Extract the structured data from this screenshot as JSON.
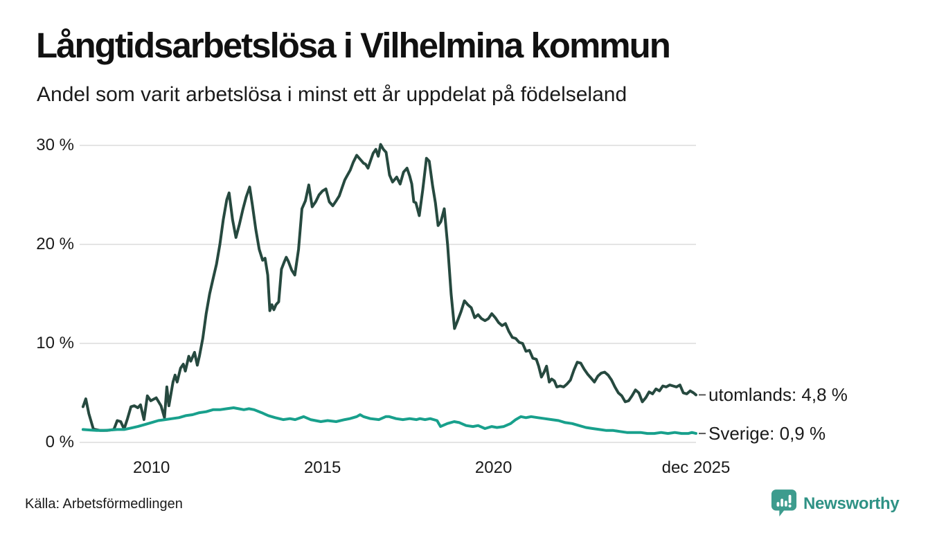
{
  "footer": {
    "brand_name": "Newsworthy",
    "brand_text_color": "#2f9285",
    "brand_icon_color": "#3d9c8e"
  },
  "chart_data": {
    "type": "line",
    "title": "Långtidsarbetslösa i Vilhelmina kommun",
    "subtitle": "Andel som varit arbetslösa i minst ett år uppdelat på födelseland",
    "source": "Källa: Arbetsförmedlingen",
    "unit": "%",
    "grid_color": "#e4e4e4",
    "connector_color": "#555555",
    "x_axis": {
      "range": [
        2007.9,
        2025.92
      ],
      "ticks": [
        {
          "x": 2010,
          "label": "2010"
        },
        {
          "x": 2015,
          "label": "2015"
        },
        {
          "x": 2020,
          "label": "2020"
        },
        {
          "x": 2025.92,
          "label": "dec 2025"
        }
      ]
    },
    "y_axis": {
      "range": [
        0,
        30
      ],
      "grid": true,
      "ticks": [
        {
          "v": 0,
          "label": "0 %"
        },
        {
          "v": 10,
          "label": "10 %"
        },
        {
          "v": 20,
          "label": "20 %"
        },
        {
          "v": 30,
          "label": "30 %"
        }
      ]
    },
    "series": [
      {
        "name": "utomlands",
        "color": "#26493f",
        "end_label": "utomlands: 4,8 %",
        "last_value": "4,8 %",
        "points": [
          [
            2008.0,
            3.6
          ],
          [
            2008.08,
            4.4
          ],
          [
            2008.17,
            2.9
          ],
          [
            2008.3,
            1.35
          ],
          [
            2008.5,
            1.2
          ],
          [
            2008.7,
            1.2
          ],
          [
            2008.9,
            1.3
          ],
          [
            2009.0,
            2.2
          ],
          [
            2009.1,
            2.1
          ],
          [
            2009.2,
            1.35
          ],
          [
            2009.3,
            2.4
          ],
          [
            2009.4,
            3.6
          ],
          [
            2009.5,
            3.7
          ],
          [
            2009.6,
            3.5
          ],
          [
            2009.68,
            3.8
          ],
          [
            2009.78,
            2.3
          ],
          [
            2009.88,
            4.7
          ],
          [
            2009.98,
            4.2
          ],
          [
            2010.14,
            4.5
          ],
          [
            2010.28,
            3.7
          ],
          [
            2010.38,
            2.5
          ],
          [
            2010.45,
            5.6
          ],
          [
            2010.51,
            3.7
          ],
          [
            2010.63,
            6.1
          ],
          [
            2010.69,
            6.8
          ],
          [
            2010.75,
            6.1
          ],
          [
            2010.85,
            7.5
          ],
          [
            2010.93,
            7.9
          ],
          [
            2010.99,
            7.2
          ],
          [
            2011.09,
            8.7
          ],
          [
            2011.15,
            8.2
          ],
          [
            2011.26,
            9.1
          ],
          [
            2011.34,
            7.8
          ],
          [
            2011.4,
            8.7
          ],
          [
            2011.5,
            10.5
          ],
          [
            2011.6,
            13.0
          ],
          [
            2011.7,
            15.0
          ],
          [
            2011.8,
            16.5
          ],
          [
            2011.9,
            18.0
          ],
          [
            2012.0,
            20.0
          ],
          [
            2012.1,
            22.5
          ],
          [
            2012.2,
            24.5
          ],
          [
            2012.27,
            25.2
          ],
          [
            2012.37,
            22.5
          ],
          [
            2012.47,
            20.7
          ],
          [
            2012.57,
            22.0
          ],
          [
            2012.67,
            23.5
          ],
          [
            2012.77,
            24.8
          ],
          [
            2012.87,
            25.8
          ],
          [
            2012.95,
            24.0
          ],
          [
            2013.05,
            21.5
          ],
          [
            2013.15,
            19.5
          ],
          [
            2013.25,
            18.4
          ],
          [
            2013.32,
            18.6
          ],
          [
            2013.4,
            16.9
          ],
          [
            2013.46,
            13.3
          ],
          [
            2013.52,
            13.9
          ],
          [
            2013.58,
            13.4
          ],
          [
            2013.64,
            13.9
          ],
          [
            2013.72,
            14.2
          ],
          [
            2013.8,
            17.5
          ],
          [
            2013.88,
            18.2
          ],
          [
            2013.94,
            18.7
          ],
          [
            2014.0,
            18.3
          ],
          [
            2014.1,
            17.4
          ],
          [
            2014.19,
            16.9
          ],
          [
            2014.3,
            19.5
          ],
          [
            2014.4,
            23.6
          ],
          [
            2014.5,
            24.4
          ],
          [
            2014.6,
            26.0
          ],
          [
            2014.7,
            23.8
          ],
          [
            2014.8,
            24.3
          ],
          [
            2014.9,
            25.0
          ],
          [
            2015.0,
            25.4
          ],
          [
            2015.1,
            25.6
          ],
          [
            2015.2,
            24.3
          ],
          [
            2015.3,
            23.9
          ],
          [
            2015.4,
            24.4
          ],
          [
            2015.49,
            24.9
          ],
          [
            2015.58,
            25.8
          ],
          [
            2015.65,
            26.5
          ],
          [
            2015.73,
            27.0
          ],
          [
            2015.81,
            27.5
          ],
          [
            2015.9,
            28.3
          ],
          [
            2016.0,
            29.0
          ],
          [
            2016.1,
            28.6
          ],
          [
            2016.2,
            28.2
          ],
          [
            2016.26,
            28.1
          ],
          [
            2016.33,
            27.7
          ],
          [
            2016.4,
            28.4
          ],
          [
            2016.48,
            29.2
          ],
          [
            2016.56,
            29.6
          ],
          [
            2016.63,
            28.9
          ],
          [
            2016.7,
            30.1
          ],
          [
            2016.78,
            29.6
          ],
          [
            2016.86,
            29.3
          ],
          [
            2016.96,
            27.0
          ],
          [
            2017.05,
            26.3
          ],
          [
            2017.17,
            26.8
          ],
          [
            2017.27,
            26.1
          ],
          [
            2017.37,
            27.3
          ],
          [
            2017.47,
            27.7
          ],
          [
            2017.55,
            26.9
          ],
          [
            2017.61,
            26.1
          ],
          [
            2017.67,
            24.3
          ],
          [
            2017.73,
            24.2
          ],
          [
            2017.83,
            22.9
          ],
          [
            2017.93,
            25.5
          ],
          [
            2018.04,
            28.7
          ],
          [
            2018.12,
            28.4
          ],
          [
            2018.22,
            25.9
          ],
          [
            2018.3,
            24.2
          ],
          [
            2018.38,
            21.9
          ],
          [
            2018.46,
            22.3
          ],
          [
            2018.56,
            23.6
          ],
          [
            2018.66,
            19.9
          ],
          [
            2018.76,
            15.0
          ],
          [
            2018.86,
            11.5
          ],
          [
            2018.95,
            12.3
          ],
          [
            2019.05,
            13.2
          ],
          [
            2019.15,
            14.3
          ],
          [
            2019.25,
            13.9
          ],
          [
            2019.35,
            13.6
          ],
          [
            2019.45,
            12.6
          ],
          [
            2019.55,
            12.9
          ],
          [
            2019.65,
            12.5
          ],
          [
            2019.75,
            12.3
          ],
          [
            2019.85,
            12.5
          ],
          [
            2019.95,
            13.0
          ],
          [
            2020.05,
            12.6
          ],
          [
            2020.15,
            12.1
          ],
          [
            2020.25,
            11.8
          ],
          [
            2020.35,
            12.0
          ],
          [
            2020.45,
            11.2
          ],
          [
            2020.55,
            10.6
          ],
          [
            2020.65,
            10.5
          ],
          [
            2020.75,
            10.1
          ],
          [
            2020.85,
            10.0
          ],
          [
            2020.95,
            9.2
          ],
          [
            2021.05,
            9.3
          ],
          [
            2021.15,
            8.5
          ],
          [
            2021.25,
            8.4
          ],
          [
            2021.32,
            7.7
          ],
          [
            2021.4,
            6.6
          ],
          [
            2021.48,
            7.1
          ],
          [
            2021.55,
            7.7
          ],
          [
            2021.63,
            6.1
          ],
          [
            2021.7,
            6.4
          ],
          [
            2021.78,
            6.2
          ],
          [
            2021.85,
            5.6
          ],
          [
            2021.95,
            5.7
          ],
          [
            2022.05,
            5.6
          ],
          [
            2022.15,
            5.9
          ],
          [
            2022.25,
            6.3
          ],
          [
            2022.35,
            7.3
          ],
          [
            2022.45,
            8.1
          ],
          [
            2022.55,
            8.0
          ],
          [
            2022.65,
            7.4
          ],
          [
            2022.75,
            6.9
          ],
          [
            2022.85,
            6.5
          ],
          [
            2022.95,
            6.1
          ],
          [
            2023.05,
            6.7
          ],
          [
            2023.15,
            7.0
          ],
          [
            2023.25,
            7.1
          ],
          [
            2023.35,
            6.8
          ],
          [
            2023.45,
            6.3
          ],
          [
            2023.55,
            5.6
          ],
          [
            2023.65,
            5.0
          ],
          [
            2023.75,
            4.7
          ],
          [
            2023.85,
            4.1
          ],
          [
            2023.95,
            4.2
          ],
          [
            2024.05,
            4.7
          ],
          [
            2024.15,
            5.3
          ],
          [
            2024.25,
            5.0
          ],
          [
            2024.35,
            4.1
          ],
          [
            2024.45,
            4.5
          ],
          [
            2024.55,
            5.1
          ],
          [
            2024.65,
            4.9
          ],
          [
            2024.75,
            5.4
          ],
          [
            2024.85,
            5.2
          ],
          [
            2024.95,
            5.7
          ],
          [
            2025.05,
            5.6
          ],
          [
            2025.15,
            5.8
          ],
          [
            2025.25,
            5.7
          ],
          [
            2025.35,
            5.6
          ],
          [
            2025.45,
            5.8
          ],
          [
            2025.55,
            5.0
          ],
          [
            2025.65,
            4.9
          ],
          [
            2025.75,
            5.2
          ],
          [
            2025.85,
            5.0
          ],
          [
            2025.92,
            4.8
          ]
        ]
      },
      {
        "name": "Sverige",
        "color": "#18a08c",
        "end_label": "Sverige: 0,9 %",
        "last_value": "0,9 %",
        "points": [
          [
            2008.0,
            1.3
          ],
          [
            2008.2,
            1.25
          ],
          [
            2008.4,
            1.2
          ],
          [
            2008.6,
            1.2
          ],
          [
            2008.8,
            1.25
          ],
          [
            2009.0,
            1.3
          ],
          [
            2009.2,
            1.3
          ],
          [
            2009.4,
            1.45
          ],
          [
            2009.6,
            1.6
          ],
          [
            2009.8,
            1.8
          ],
          [
            2010.0,
            2.0
          ],
          [
            2010.2,
            2.2
          ],
          [
            2010.4,
            2.3
          ],
          [
            2010.6,
            2.4
          ],
          [
            2010.8,
            2.5
          ],
          [
            2011.0,
            2.7
          ],
          [
            2011.2,
            2.8
          ],
          [
            2011.4,
            3.0
          ],
          [
            2011.6,
            3.1
          ],
          [
            2011.8,
            3.3
          ],
          [
            2012.0,
            3.3
          ],
          [
            2012.2,
            3.4
          ],
          [
            2012.4,
            3.5
          ],
          [
            2012.55,
            3.4
          ],
          [
            2012.7,
            3.3
          ],
          [
            2012.85,
            3.4
          ],
          [
            2013.0,
            3.3
          ],
          [
            2013.22,
            3.0
          ],
          [
            2013.42,
            2.7
          ],
          [
            2013.62,
            2.5
          ],
          [
            2013.85,
            2.3
          ],
          [
            2014.05,
            2.4
          ],
          [
            2014.2,
            2.3
          ],
          [
            2014.45,
            2.6
          ],
          [
            2014.65,
            2.3
          ],
          [
            2014.95,
            2.1
          ],
          [
            2015.15,
            2.2
          ],
          [
            2015.4,
            2.1
          ],
          [
            2015.65,
            2.3
          ],
          [
            2015.8,
            2.4
          ],
          [
            2016.0,
            2.6
          ],
          [
            2016.1,
            2.8
          ],
          [
            2016.2,
            2.6
          ],
          [
            2016.4,
            2.4
          ],
          [
            2016.65,
            2.3
          ],
          [
            2016.85,
            2.6
          ],
          [
            2016.95,
            2.6
          ],
          [
            2017.15,
            2.4
          ],
          [
            2017.35,
            2.3
          ],
          [
            2017.55,
            2.4
          ],
          [
            2017.75,
            2.3
          ],
          [
            2017.85,
            2.4
          ],
          [
            2018.0,
            2.3
          ],
          [
            2018.15,
            2.4
          ],
          [
            2018.35,
            2.2
          ],
          [
            2018.45,
            1.6
          ],
          [
            2018.65,
            1.9
          ],
          [
            2018.85,
            2.1
          ],
          [
            2019.0,
            2.0
          ],
          [
            2019.2,
            1.7
          ],
          [
            2019.4,
            1.6
          ],
          [
            2019.55,
            1.7
          ],
          [
            2019.75,
            1.4
          ],
          [
            2019.95,
            1.6
          ],
          [
            2020.1,
            1.5
          ],
          [
            2020.3,
            1.6
          ],
          [
            2020.5,
            1.9
          ],
          [
            2020.65,
            2.3
          ],
          [
            2020.8,
            2.6
          ],
          [
            2020.95,
            2.5
          ],
          [
            2021.1,
            2.6
          ],
          [
            2021.3,
            2.5
          ],
          [
            2021.5,
            2.4
          ],
          [
            2021.7,
            2.3
          ],
          [
            2021.9,
            2.2
          ],
          [
            2022.1,
            2.0
          ],
          [
            2022.3,
            1.9
          ],
          [
            2022.5,
            1.7
          ],
          [
            2022.7,
            1.5
          ],
          [
            2022.9,
            1.4
          ],
          [
            2023.1,
            1.3
          ],
          [
            2023.3,
            1.2
          ],
          [
            2023.5,
            1.2
          ],
          [
            2023.7,
            1.1
          ],
          [
            2023.9,
            1.0
          ],
          [
            2024.1,
            1.0
          ],
          [
            2024.3,
            1.0
          ],
          [
            2024.5,
            0.9
          ],
          [
            2024.7,
            0.9
          ],
          [
            2024.9,
            1.0
          ],
          [
            2025.1,
            0.9
          ],
          [
            2025.3,
            1.0
          ],
          [
            2025.5,
            0.9
          ],
          [
            2025.7,
            0.9
          ],
          [
            2025.8,
            1.0
          ],
          [
            2025.92,
            0.9
          ]
        ]
      }
    ]
  }
}
